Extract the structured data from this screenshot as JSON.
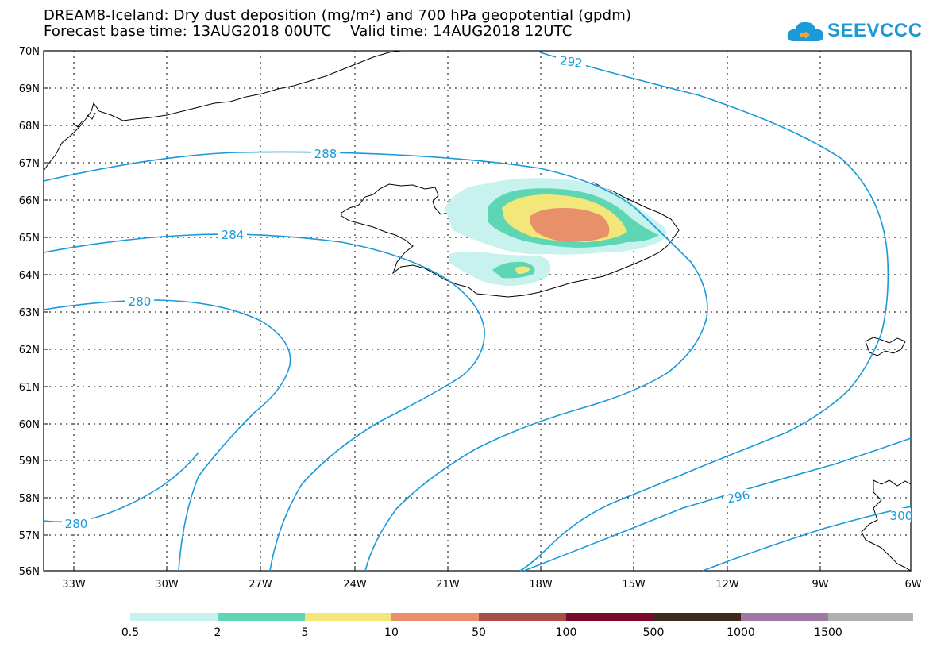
{
  "header": {
    "title_line1": "DREAM8-Iceland: Dry dust deposition (mg/m²) and 700 hPa geopotential (gpdm)",
    "title_line2": "Forecast base time: 13AUG2018 00UTC    Valid time: 14AUG2018 12UTC"
  },
  "logo": {
    "text": "SEEVCCC",
    "color": "#1a9ad8"
  },
  "map": {
    "lat_labels": [
      "70N",
      "69N",
      "68N",
      "67N",
      "66N",
      "65N",
      "64N",
      "63N",
      "62N",
      "61N",
      "60N",
      "59N",
      "58N",
      "57N",
      "56N"
    ],
    "lon_labels": [
      "33W",
      "30W",
      "27W",
      "24W",
      "21W",
      "18W",
      "15W",
      "12W",
      "9W",
      "6W"
    ],
    "contour_color": "#1a9ad8",
    "contour_labels": [
      "292",
      "288",
      "284",
      "280",
      "280",
      "296",
      "300"
    ]
  },
  "colorbar": {
    "labels": [
      "0.5",
      "2",
      "5",
      "10",
      "50",
      "100",
      "500",
      "1000",
      "1500"
    ],
    "colors": [
      "#c8f2ee",
      "#5fd6b3",
      "#f3e77a",
      "#e8906a",
      "#a84f45",
      "#7a0a2a",
      "#3d2a1a",
      "#9e7aa3",
      "#b0b0b0"
    ]
  }
}
